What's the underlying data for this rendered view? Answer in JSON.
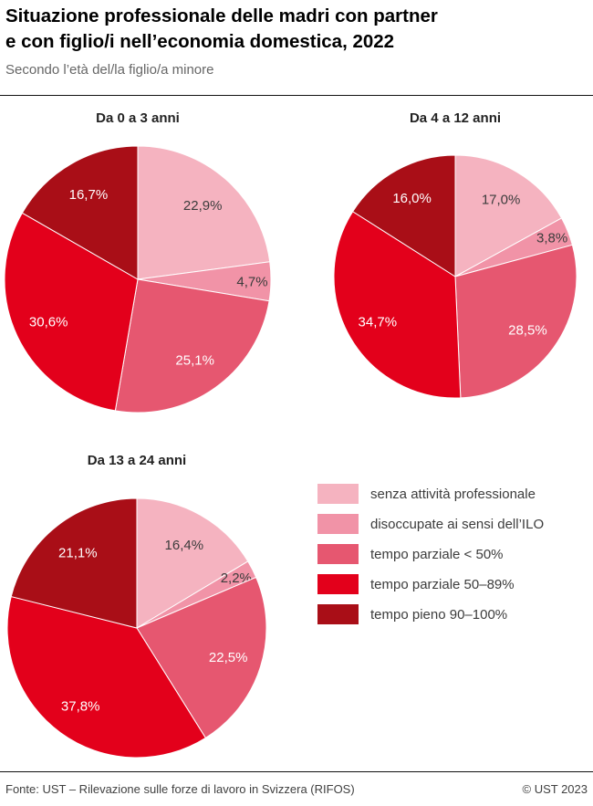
{
  "header": {
    "title_line1": "Situazione professionale delle madri con partner",
    "title_line2": "e con figlio/i nell’economia domestica, 2022",
    "subtitle": "Secondo l’età del/la figlio/a minore"
  },
  "chart_data": {
    "type": "pie",
    "unit": "%",
    "decimal_separator": ",",
    "categories": [
      "senza attività professionale",
      "disoccupate ai sensi dell’ILO",
      "tempo parziale < 50%",
      "tempo parziale 50–89%",
      "tempo pieno 90–100%"
    ],
    "colors": [
      "#f5b3c0",
      "#f193a7",
      "#e65770",
      "#e3001b",
      "#a90e17"
    ],
    "charts": [
      {
        "title": "Da 0 a 3 anni",
        "values": [
          22.9,
          4.7,
          25.1,
          30.6,
          16.7
        ]
      },
      {
        "title": "Da 4 a 12 anni",
        "values": [
          17.0,
          3.8,
          28.5,
          34.7,
          16.0
        ]
      },
      {
        "title": "Da 13 a 24 anni",
        "values": [
          16.4,
          2.2,
          22.5,
          37.8,
          21.1
        ]
      }
    ],
    "legend_position": "bottom-right",
    "label_colors": {
      "dark": "#3c3c3c",
      "light": "#ffffff"
    }
  },
  "footer": {
    "source": "Fonte: UST – Rilevazione sulle forze di lavoro in Svizzera (RIFOS)",
    "copyright": "© UST 2023"
  }
}
